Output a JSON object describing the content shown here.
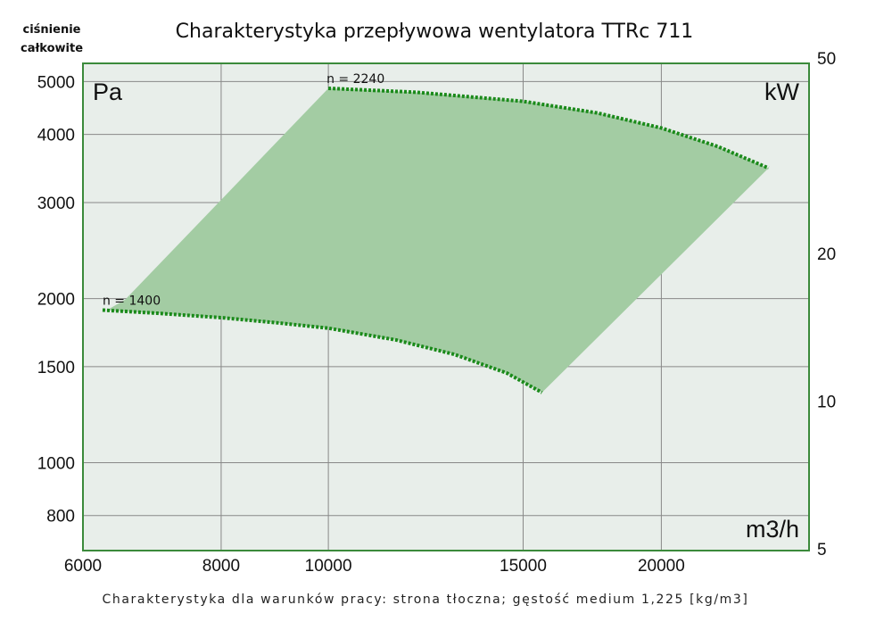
{
  "chart_data": {
    "type": "line",
    "title": "Charakterystyka przepływowa wentylatora TTRc 711",
    "ylabel": [
      "ciśnienie",
      "całkowite"
    ],
    "y_unit": "Pa",
    "y2_unit": "kW",
    "x_unit": "m3/h",
    "footnote": "Charakterystyka dla warunków pracy: strona tłoczna; gęstość medium 1,225 [kg/m3]",
    "x_scale": "log",
    "y_scale": "log",
    "y2_scale": "log",
    "xlim": [
      6000,
      27200
    ],
    "ylim": [
      690,
      5400
    ],
    "y2lim": [
      5,
      50
    ],
    "x_ticks": [
      6000,
      8000,
      10000,
      15000,
      20000
    ],
    "y_ticks": [
      800,
      1000,
      1500,
      2000,
      3000,
      4000,
      5000
    ],
    "y2_ticks": [
      5,
      10,
      20,
      50
    ],
    "grid": true,
    "series": [
      {
        "name": "n = 1400",
        "x": [
          6250,
          7000,
          8000,
          9000,
          10000,
          11500,
          13000,
          14500,
          15600
        ],
        "y": [
          1905,
          1880,
          1845,
          1805,
          1765,
          1680,
          1580,
          1460,
          1345
        ]
      },
      {
        "name": "n = 2240",
        "x": [
          10000,
          12000,
          15000,
          17500,
          20000,
          22500,
          25000
        ],
        "y": [
          4860,
          4780,
          4600,
          4380,
          4110,
          3800,
          3470
        ]
      }
    ],
    "operating_region": {
      "x": [
        6550,
        10000,
        25000,
        15600
      ],
      "y": [
        1990,
        4860,
        3470,
        1345
      ]
    },
    "colors": {
      "fill": "#a3cca3",
      "curve": "#1a8a1a",
      "frame": "#3b8a3b",
      "plot_bg": "#e8eeea",
      "grid": "#888888"
    }
  }
}
